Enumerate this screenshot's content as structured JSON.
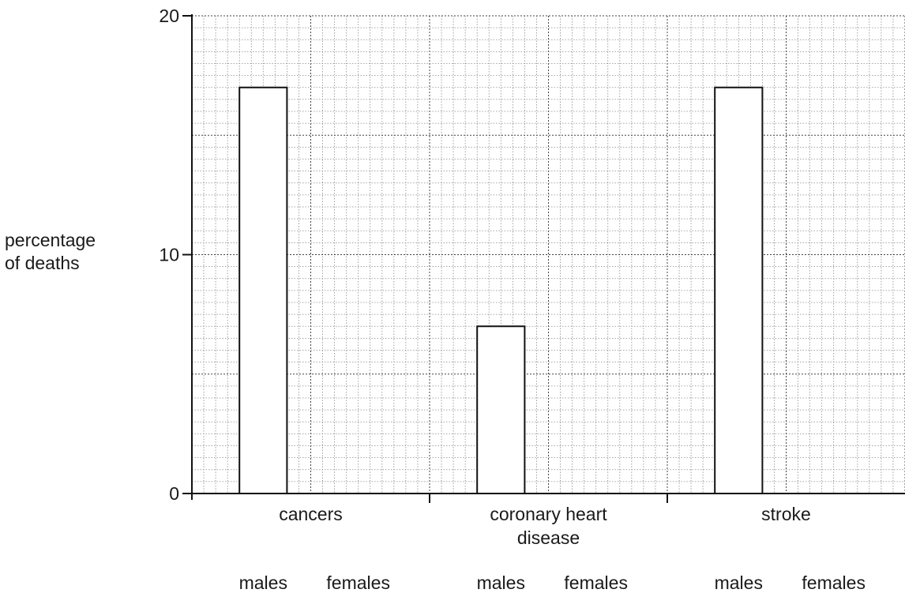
{
  "chart_data": {
    "type": "bar",
    "title": "",
    "xlabel": "",
    "ylabel_lines": [
      "percentage",
      "of deaths"
    ],
    "ylim": [
      0,
      20
    ],
    "yticks": [
      "0",
      "10",
      "20"
    ],
    "grid": true,
    "categories": [
      {
        "name_lines": [
          "cancers"
        ],
        "sub_labels": [
          "males",
          "females"
        ],
        "values": [
          17,
          null
        ]
      },
      {
        "name_lines": [
          "coronary heart",
          "disease"
        ],
        "sub_labels": [
          "males",
          "females"
        ],
        "values": [
          7,
          null
        ]
      },
      {
        "name_lines": [
          "stroke"
        ],
        "sub_labels": [
          "males",
          "females"
        ],
        "values": [
          17,
          null
        ]
      }
    ]
  }
}
